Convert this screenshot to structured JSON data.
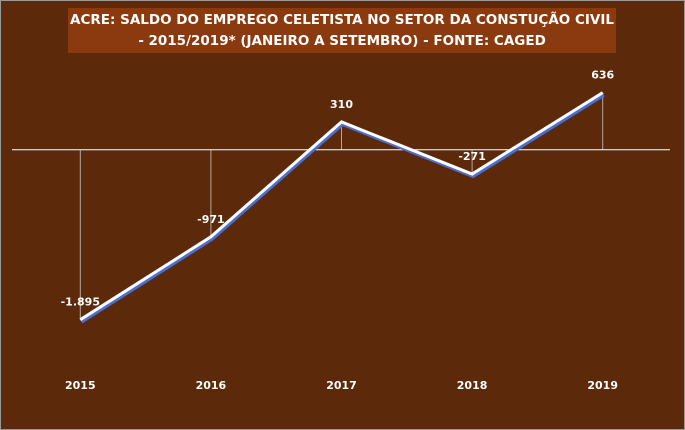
{
  "chart_data": {
    "type": "line",
    "title": [
      "ACRE: SALDO DO EMPREGO CELETISTA NO SETOR DA CONSTUÇÃO CIVIL",
      "- 2015/2019* (JANEIRO A SETEMBRO) - FONTE: CAGED"
    ],
    "categories": [
      "2015",
      "2016",
      "2017",
      "2018",
      "2019"
    ],
    "values": [
      -1895,
      -971,
      310,
      -271,
      636
    ],
    "value_labels": [
      "-1.895",
      "-971",
      "310",
      "-271",
      "636"
    ],
    "color": "#ffffff",
    "ylim": [
      -2400,
      1000
    ]
  }
}
